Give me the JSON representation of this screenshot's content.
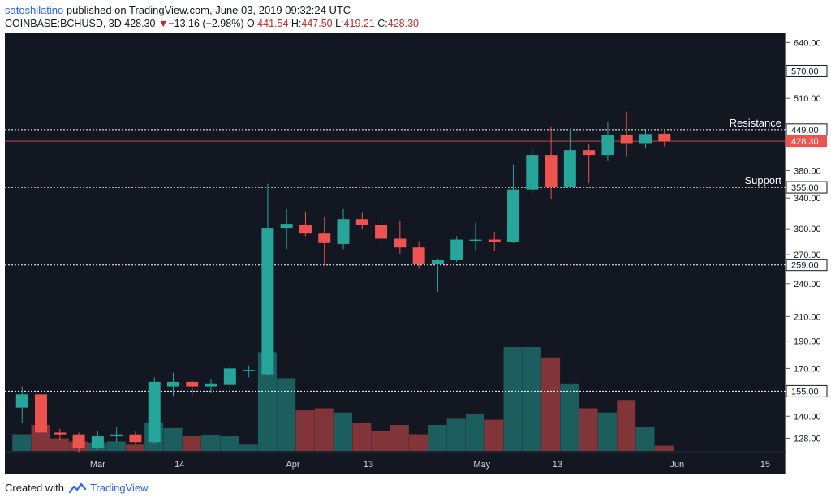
{
  "header": {
    "author": "satoshilatino",
    "published": "published on TradingView.com, June 03, 2019 09:32:24 UTC",
    "symbol": "COINBASE:BCHUSD, 3D",
    "last": "428.30",
    "change_arrow": "▼",
    "change": "−13.16 (−2.98%)",
    "o_label": "O:",
    "o": "441.54",
    "h_label": "H:",
    "h": "447.50",
    "l_label": "L:",
    "l": "419.21",
    "c_label": "C:",
    "c": "428.30"
  },
  "footer": {
    "created_with": "Created with",
    "brand": "TradingView",
    "logo_icon": "tradingview-cloud-icon"
  },
  "colors": {
    "background": "#131722",
    "up": "#26a69a",
    "down": "#ef5350",
    "up_volume": "#26a69a",
    "down_volume": "#ef5350",
    "price_line": "#ef5350"
  },
  "chart_data": {
    "type": "candlestick",
    "title": "COINBASE:BCHUSD, 3D",
    "scale": "log",
    "ylim": [
      122,
      660
    ],
    "y_ticks": [
      "640.00",
      "570.00",
      "510.00",
      "449.00",
      "380.00",
      "355.00",
      "340.00",
      "300.00",
      "270.00",
      "259.00",
      "240.00",
      "210.00",
      "190.00",
      "170.00",
      "155.00",
      "140.00",
      "128.00"
    ],
    "x_ticks": [
      {
        "label": "Mar",
        "date": "2019-03-01"
      },
      {
        "label": "14",
        "date": "2019-03-14"
      },
      {
        "label": "Apr",
        "date": "2019-04-01"
      },
      {
        "label": "13",
        "date": "2019-04-13"
      },
      {
        "label": "May",
        "date": "2019-05-01"
      },
      {
        "label": "13",
        "date": "2019-05-13"
      },
      {
        "label": "Jun",
        "date": "2019-06-01"
      },
      {
        "label": "15",
        "date": "2019-06-15"
      }
    ],
    "levels": [
      {
        "value": 570.0,
        "label": "570.00",
        "text": ""
      },
      {
        "value": 449.0,
        "label": "449.00",
        "text": "Resistance"
      },
      {
        "value": 355.0,
        "label": "355.00",
        "text": "Support"
      },
      {
        "value": 259.0,
        "label": "259.00",
        "text": ""
      },
      {
        "value": 155.0,
        "label": "155.00",
        "text": ""
      }
    ],
    "last_price": {
      "value": 428.3,
      "label": "428.30"
    },
    "candles": [
      {
        "date": "2019-02-17",
        "o": 145,
        "h": 158,
        "l": 136,
        "c": 153,
        "v": 0.16
      },
      {
        "date": "2019-02-20",
        "o": 153,
        "h": 156,
        "l": 130,
        "c": 131,
        "v": 0.25
      },
      {
        "date": "2019-02-23",
        "o": 131,
        "h": 133,
        "l": 127,
        "c": 130,
        "v": 0.12
      },
      {
        "date": "2019-02-26",
        "o": 130,
        "h": 131,
        "l": 121,
        "c": 123,
        "v": 0.09
      },
      {
        "date": "2019-03-01",
        "o": 123,
        "h": 132,
        "l": 122,
        "c": 129,
        "v": 0.08
      },
      {
        "date": "2019-03-04",
        "o": 129,
        "h": 134,
        "l": 126,
        "c": 130,
        "v": 0.09
      },
      {
        "date": "2019-03-07",
        "o": 130,
        "h": 132,
        "l": 125,
        "c": 126,
        "v": 0.06
      },
      {
        "date": "2019-03-10",
        "o": 126,
        "h": 164,
        "l": 125,
        "c": 161,
        "v": 0.27
      },
      {
        "date": "2019-03-13",
        "o": 158,
        "h": 167,
        "l": 152,
        "c": 161,
        "v": 0.22
      },
      {
        "date": "2019-03-16",
        "o": 161,
        "h": 162,
        "l": 152,
        "c": 158,
        "v": 0.14
      },
      {
        "date": "2019-03-19",
        "o": 158,
        "h": 163,
        "l": 154,
        "c": 160,
        "v": 0.15
      },
      {
        "date": "2019-03-22",
        "o": 159,
        "h": 173,
        "l": 155,
        "c": 170,
        "v": 0.14
      },
      {
        "date": "2019-03-25",
        "o": 168,
        "h": 172,
        "l": 164,
        "c": 169,
        "v": 0.06
      },
      {
        "date": "2019-03-28",
        "o": 166,
        "h": 360,
        "l": 165,
        "c": 301,
        "v": 0.95
      },
      {
        "date": "2019-03-31",
        "o": 301,
        "h": 325,
        "l": 276,
        "c": 306,
        "v": 0.7
      },
      {
        "date": "2019-04-03",
        "o": 305,
        "h": 321,
        "l": 291,
        "c": 295,
        "v": 0.39
      },
      {
        "date": "2019-04-06",
        "o": 295,
        "h": 315,
        "l": 258,
        "c": 283,
        "v": 0.41
      },
      {
        "date": "2019-04-09",
        "o": 282,
        "h": 325,
        "l": 276,
        "c": 312,
        "v": 0.37
      },
      {
        "date": "2019-04-12",
        "o": 312,
        "h": 320,
        "l": 300,
        "c": 305,
        "v": 0.27
      },
      {
        "date": "2019-04-15",
        "o": 305,
        "h": 315,
        "l": 280,
        "c": 288,
        "v": 0.19
      },
      {
        "date": "2019-04-18",
        "o": 288,
        "h": 310,
        "l": 271,
        "c": 278,
        "v": 0.25
      },
      {
        "date": "2019-04-21",
        "o": 278,
        "h": 285,
        "l": 255,
        "c": 260,
        "v": 0.16
      },
      {
        "date": "2019-04-24",
        "o": 260,
        "h": 266,
        "l": 232,
        "c": 264,
        "v": 0.25
      },
      {
        "date": "2019-04-27",
        "o": 264,
        "h": 291,
        "l": 262,
        "c": 287,
        "v": 0.31
      },
      {
        "date": "2019-04-30",
        "o": 287,
        "h": 308,
        "l": 274,
        "c": 287,
        "v": 0.36
      },
      {
        "date": "2019-05-03",
        "o": 287,
        "h": 296,
        "l": 274,
        "c": 284,
        "v": 0.3
      },
      {
        "date": "2019-05-06",
        "o": 284,
        "h": 390,
        "l": 283,
        "c": 352,
        "v": 1.0
      },
      {
        "date": "2019-05-09",
        "o": 352,
        "h": 415,
        "l": 346,
        "c": 405,
        "v": 1.0
      },
      {
        "date": "2019-05-12",
        "o": 405,
        "h": 455,
        "l": 339,
        "c": 355,
        "v": 0.9
      },
      {
        "date": "2019-05-15",
        "o": 355,
        "h": 451,
        "l": 355,
        "c": 413,
        "v": 0.65
      },
      {
        "date": "2019-05-18",
        "o": 413,
        "h": 424,
        "l": 361,
        "c": 405,
        "v": 0.41
      },
      {
        "date": "2019-05-21",
        "o": 405,
        "h": 463,
        "l": 395,
        "c": 440,
        "v": 0.37
      },
      {
        "date": "2019-05-24",
        "o": 440,
        "h": 483,
        "l": 403,
        "c": 425,
        "v": 0.49
      },
      {
        "date": "2019-05-27",
        "o": 425,
        "h": 448,
        "l": 417,
        "c": 441,
        "v": 0.23
      },
      {
        "date": "2019-05-30",
        "o": 441.54,
        "h": 447.5,
        "l": 419.21,
        "c": 428.3,
        "v": 0.05
      }
    ]
  }
}
